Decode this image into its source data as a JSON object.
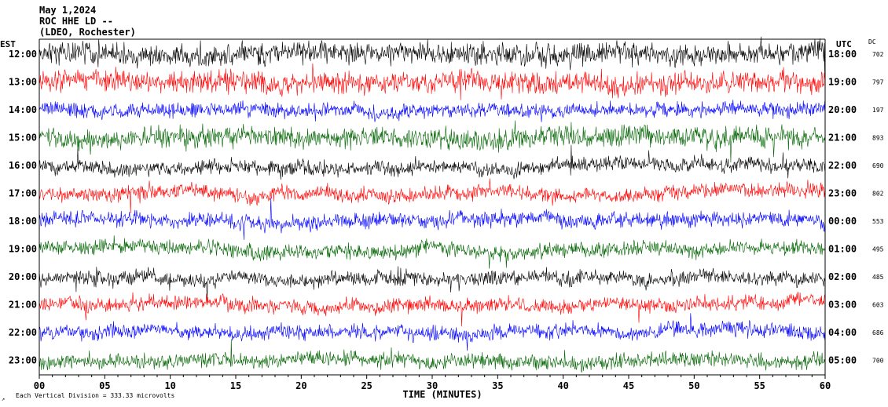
{
  "header": {
    "date": "May 1,2024",
    "station": "ROC HHE LD --",
    "network": "(LDEO, Rochester)"
  },
  "left_axis_label": "EST",
  "right_axis_label": "UTC",
  "dc_label": "DC",
  "footer": {
    "scale_note": "Each Vertical Division = 333.33 microvolts",
    "symbol": "↗"
  },
  "colors": {
    "trace_cycle": [
      "#000000",
      "#ff0000",
      "#0000ff",
      "#006400"
    ],
    "axis": "#000000",
    "background": "#ffffff"
  },
  "chart_data": {
    "type": "line",
    "xlabel": "TIME (MINUTES)",
    "xlim": [
      0,
      60
    ],
    "x_ticks": [
      "00",
      "05",
      "10",
      "15",
      "20",
      "25",
      "30",
      "35",
      "40",
      "45",
      "50",
      "55",
      "60"
    ],
    "rows": [
      {
        "est": "12:00",
        "utc": "18:00",
        "dc": "702",
        "color": "black",
        "amplitude": "high"
      },
      {
        "est": "13:00",
        "utc": "19:00",
        "dc": "797",
        "color": "red",
        "amplitude": "high"
      },
      {
        "est": "14:00",
        "utc": "20:00",
        "dc": "197",
        "color": "blue",
        "amplitude": "medium"
      },
      {
        "est": "15:00",
        "utc": "21:00",
        "dc": "893",
        "color": "green",
        "amplitude": "high"
      },
      {
        "est": "16:00",
        "utc": "22:00",
        "dc": "690",
        "color": "black",
        "amplitude": "medium"
      },
      {
        "est": "17:00",
        "utc": "23:00",
        "dc": "802",
        "color": "red",
        "amplitude": "medium"
      },
      {
        "est": "18:00",
        "utc": "00:00",
        "dc": "553",
        "color": "blue",
        "amplitude": "medium"
      },
      {
        "est": "19:00",
        "utc": "01:00",
        "dc": "495",
        "color": "green",
        "amplitude": "medium"
      },
      {
        "est": "20:00",
        "utc": "02:00",
        "dc": "485",
        "color": "black",
        "amplitude": "medium"
      },
      {
        "est": "21:00",
        "utc": "03:00",
        "dc": "603",
        "color": "red",
        "amplitude": "medium"
      },
      {
        "est": "22:00",
        "utc": "04:00",
        "dc": "686",
        "color": "blue",
        "amplitude": "medium"
      },
      {
        "est": "23:00",
        "utc": "05:00",
        "dc": "700",
        "color": "green",
        "amplitude": "medium"
      }
    ]
  }
}
